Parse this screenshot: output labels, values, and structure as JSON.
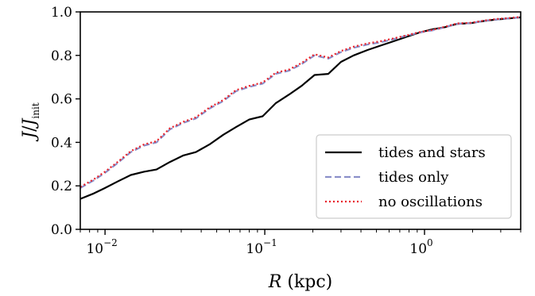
{
  "chart_data": {
    "type": "line",
    "xlabel": {
      "var": "R",
      "unit": " (kpc)"
    },
    "ylabel": {
      "base": "J",
      "slash": "/",
      "var": "J",
      "sub": "init"
    },
    "xscale": "log",
    "xlim": [
      0.007,
      4.0
    ],
    "ylim": [
      0.0,
      1.0
    ],
    "grid": false,
    "legend_placement": "lower-right",
    "x_ticks": [
      {
        "value": 0.01,
        "base": "10",
        "exp": "−2"
      },
      {
        "value": 0.1,
        "base": "10",
        "exp": "−1"
      },
      {
        "value": 1.0,
        "base": "10",
        "exp": "0"
      }
    ],
    "y_ticks": [
      {
        "value": 0.0,
        "label": "0.0"
      },
      {
        "value": 0.2,
        "label": "0.2"
      },
      {
        "value": 0.4,
        "label": "0.4"
      },
      {
        "value": 0.6,
        "label": "0.6"
      },
      {
        "value": 0.8,
        "label": "0.8"
      },
      {
        "value": 1.0,
        "label": "1.0"
      }
    ],
    "series": [
      {
        "name": "tides and stars",
        "color": "#000000",
        "style": "solid",
        "x": [
          0.007,
          0.0085,
          0.01,
          0.012,
          0.0145,
          0.0175,
          0.021,
          0.0255,
          0.031,
          0.037,
          0.045,
          0.055,
          0.066,
          0.08,
          0.097,
          0.117,
          0.142,
          0.17,
          0.205,
          0.25,
          0.3,
          0.36,
          0.44,
          0.53,
          0.64,
          0.77,
          0.93,
          1.12,
          1.35,
          1.6,
          1.95,
          2.35,
          2.8,
          3.4,
          4.0
        ],
        "y": [
          0.14,
          0.165,
          0.19,
          0.22,
          0.25,
          0.265,
          0.275,
          0.31,
          0.34,
          0.355,
          0.39,
          0.435,
          0.47,
          0.505,
          0.52,
          0.58,
          0.62,
          0.66,
          0.71,
          0.715,
          0.77,
          0.8,
          0.825,
          0.845,
          0.865,
          0.885,
          0.905,
          0.92,
          0.93,
          0.945,
          0.948,
          0.958,
          0.965,
          0.97,
          0.975
        ]
      },
      {
        "name": "tides only",
        "color": "#8b8fc9",
        "style": "dashed",
        "x": [
          0.007,
          0.0085,
          0.01,
          0.012,
          0.0145,
          0.0175,
          0.021,
          0.0255,
          0.031,
          0.037,
          0.045,
          0.055,
          0.066,
          0.08,
          0.097,
          0.117,
          0.142,
          0.17,
          0.205,
          0.25,
          0.3,
          0.36,
          0.44,
          0.53,
          0.64,
          0.77,
          0.93,
          1.12,
          1.35,
          1.6,
          1.95,
          2.35,
          2.8,
          3.4,
          4.0
        ],
        "y": [
          0.19,
          0.225,
          0.26,
          0.305,
          0.355,
          0.385,
          0.4,
          0.46,
          0.49,
          0.51,
          0.555,
          0.59,
          0.635,
          0.655,
          0.67,
          0.715,
          0.73,
          0.76,
          0.8,
          0.785,
          0.815,
          0.835,
          0.85,
          0.86,
          0.875,
          0.89,
          0.905,
          0.915,
          0.93,
          0.945,
          0.948,
          0.958,
          0.965,
          0.97,
          0.975
        ]
      },
      {
        "name": "no oscillations",
        "color": "#e8222a",
        "style": "dotted",
        "x": [
          0.007,
          0.0085,
          0.01,
          0.012,
          0.0145,
          0.0175,
          0.021,
          0.0255,
          0.031,
          0.037,
          0.045,
          0.055,
          0.066,
          0.08,
          0.097,
          0.117,
          0.142,
          0.17,
          0.205,
          0.25,
          0.3,
          0.36,
          0.44,
          0.53,
          0.64,
          0.77,
          0.93,
          1.12,
          1.35,
          1.6,
          1.95,
          2.35,
          2.8,
          3.4,
          4.0
        ],
        "y": [
          0.195,
          0.23,
          0.265,
          0.31,
          0.36,
          0.39,
          0.405,
          0.465,
          0.495,
          0.515,
          0.56,
          0.595,
          0.64,
          0.66,
          0.675,
          0.72,
          0.735,
          0.765,
          0.805,
          0.79,
          0.82,
          0.84,
          0.855,
          0.865,
          0.878,
          0.892,
          0.907,
          0.917,
          0.932,
          0.947,
          0.95,
          0.96,
          0.967,
          0.972,
          0.977
        ]
      }
    ]
  }
}
